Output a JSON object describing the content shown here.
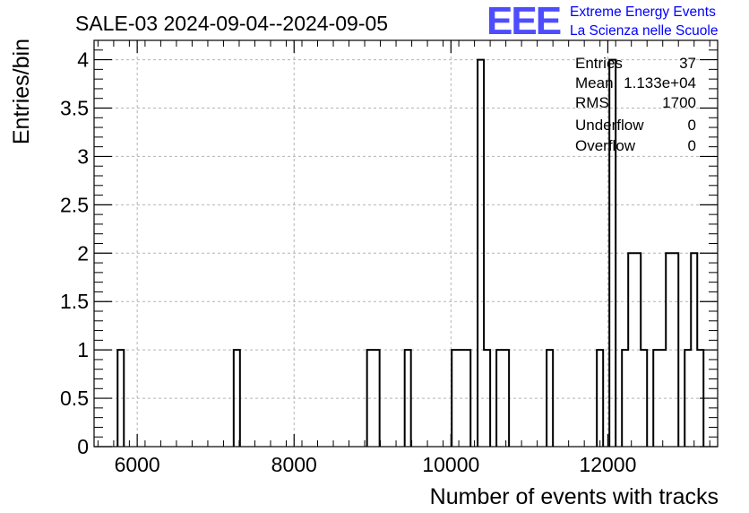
{
  "chart_data": {
    "type": "histogram",
    "title": "SALE-03 2024-09-04--2024-09-05",
    "xlabel": "Number of events with tracks",
    "ylabel": "Entries/bin",
    "xlim": [
      5450,
      13400
    ],
    "ylim": [
      0,
      4.2
    ],
    "grid": true,
    "x_ticks": [
      6000,
      8000,
      10000,
      12000
    ],
    "x_tick_labels": [
      "6000",
      "8000",
      "10000",
      "12000"
    ],
    "y_ticks": [
      0,
      0.5,
      1,
      1.5,
      2,
      2.5,
      3,
      3.5,
      4
    ],
    "y_tick_labels": [
      "0",
      "0.5",
      "1",
      "1.5",
      "2",
      "2.5",
      "3",
      "3.5",
      "4"
    ],
    "bins": [
      {
        "x0": 5750,
        "x1": 5830,
        "count": 1
      },
      {
        "x0": 7230,
        "x1": 7310,
        "count": 1
      },
      {
        "x0": 8930,
        "x1": 9090,
        "count": 1
      },
      {
        "x0": 9410,
        "x1": 9490,
        "count": 1
      },
      {
        "x0": 10010,
        "x1": 10250,
        "count": 1
      },
      {
        "x0": 10340,
        "x1": 10420,
        "count": 4
      },
      {
        "x0": 10420,
        "x1": 10500,
        "count": 1
      },
      {
        "x0": 10580,
        "x1": 10740,
        "count": 1
      },
      {
        "x0": 11220,
        "x1": 11300,
        "count": 1
      },
      {
        "x0": 11860,
        "x1": 11940,
        "count": 1
      },
      {
        "x0": 12020,
        "x1": 12100,
        "count": 4
      },
      {
        "x0": 12180,
        "x1": 12260,
        "count": 1
      },
      {
        "x0": 12260,
        "x1": 12420,
        "count": 2
      },
      {
        "x0": 12420,
        "x1": 12500,
        "count": 1
      },
      {
        "x0": 12580,
        "x1": 12740,
        "count": 1
      },
      {
        "x0": 12740,
        "x1": 12900,
        "count": 2
      },
      {
        "x0": 12980,
        "x1": 13060,
        "count": 1
      },
      {
        "x0": 13060,
        "x1": 13140,
        "count": 2
      },
      {
        "x0": 13140,
        "x1": 13220,
        "count": 1
      }
    ],
    "stats": {
      "entries_label": "Entries",
      "entries_value": "37",
      "mean_label": "Mean",
      "mean_value": "1.133e+04",
      "rms_label": "RMS",
      "rms_value": "1700",
      "underflow_label": "Underflow",
      "underflow_value": "0",
      "overflow_label": "Overflow",
      "overflow_value": "0"
    }
  },
  "logo": {
    "text": "EEE",
    "line1": "Extreme Energy Events",
    "line2": "La Scienza nelle Scuole",
    "color": "#0000ff"
  }
}
